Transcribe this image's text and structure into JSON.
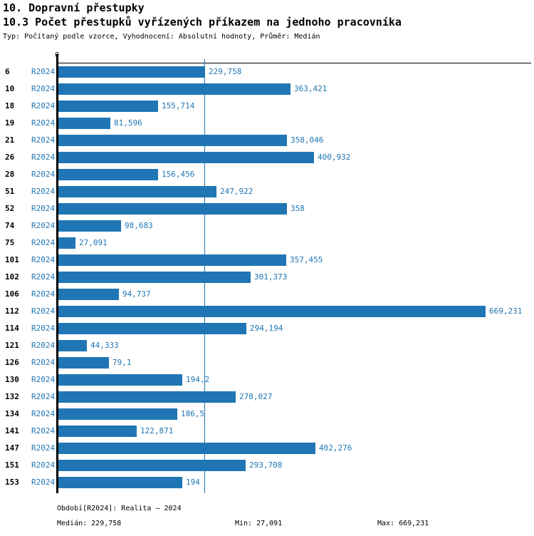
{
  "title": "10. Dopravní přestupky",
  "subtitle": "10.3 Počet přestupků vyřízených příkazem na jednoho pracovníka",
  "meta": "Typ: Počítaný podle vzorce, Vyhodnocení: Absolutní hodnoty, Průměr: Medián",
  "axis": {
    "zero_label": "0"
  },
  "colors": {
    "bar_blue": "#2076b4",
    "label_blue": "#2076b4",
    "axis_black": "#000000"
  },
  "chart_data": {
    "type": "bar",
    "orientation": "horizontal",
    "title": "10.3 Počet přestupků vyřízených příkazem na jednoho pracovníka",
    "series_label": "R2024",
    "categories": [
      "6",
      "10",
      "18",
      "19",
      "21",
      "26",
      "28",
      "51",
      "52",
      "74",
      "75",
      "101",
      "102",
      "106",
      "112",
      "114",
      "121",
      "126",
      "130",
      "132",
      "134",
      "141",
      "147",
      "151",
      "153"
    ],
    "values": [
      229.758,
      363.421,
      155.714,
      81.596,
      358.046,
      400.932,
      156.456,
      247.922,
      358,
      98.683,
      27.091,
      357.455,
      301.373,
      94.737,
      669.231,
      294.194,
      44.333,
      79.1,
      194.2,
      278.027,
      186.5,
      122.871,
      402.276,
      293.708,
      194
    ],
    "value_labels": [
      "229,758",
      "363,421",
      "155,714",
      "81,596",
      "358,046",
      "400,932",
      "156,456",
      "247,922",
      "358",
      "98,683",
      "27,091",
      "357,455",
      "301,373",
      "94,737",
      "669,231",
      "294,194",
      "44,333",
      "79,1",
      "194,2",
      "278,027",
      "186,5",
      "122,871",
      "402,276",
      "293,708",
      "194"
    ],
    "x_origin_label": "0",
    "xlim": [
      0,
      740
    ],
    "median": 229.758,
    "min": 27.091,
    "max": 669.231,
    "grid": "vertical-median-line-only",
    "legend_position": "none"
  },
  "footer": {
    "period": "Období[R2024]: Realita – 2024",
    "median": "Medián: 229,758",
    "min": "Min: 27,091",
    "max": "Max: 669,231"
  }
}
